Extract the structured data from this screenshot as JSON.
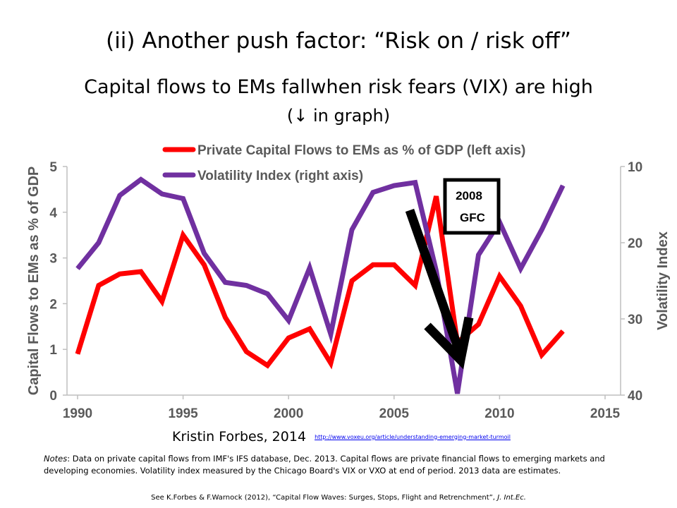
{
  "slide": {
    "title": "(ii) Another push factor: “Risk on / risk off”",
    "subtitle": "Capital flows to EMs fallwhen risk fears (VIX) are high",
    "subtitle_note": "(↓ in graph)"
  },
  "annotation": {
    "line1": "2008",
    "line2": "GFC"
  },
  "source": {
    "author": "Kristin Forbes, 2014",
    "url": "http://www.voxeu.org/article/understanding-emerging-market-turmoil"
  },
  "notes": {
    "lead": "Notes",
    "text": ": Data on private capital flows from IMF's IFS database, Dec. 2013. Capital flows are private financial flows to emerging markets and developing economies. Volatility index measured by the Chicago Board's VIX or VXO at end of period. 2013 data are estimates."
  },
  "footnote": {
    "text": "See K.Forbes & F.Warnock (2012), “Capital Flow Waves: Surges, Stops, Flight and Retrenchment”,",
    "journal": "J. Int.Ec."
  },
  "colors": {
    "capital_flows": "#ff0000",
    "vix": "#7030a0",
    "arrow": "#000000"
  },
  "chart_data": {
    "type": "line",
    "xlabel": "",
    "ylabel": "Capital Flows to EMs as % of GDP",
    "y2label": "Volatility Index",
    "xlim": [
      1990,
      2015
    ],
    "ylim": [
      0,
      5
    ],
    "y2lim": [
      10,
      40
    ],
    "y2_inverted": true,
    "grid": false,
    "legend": "top-center",
    "x_ticks": [
      "1990",
      "1995",
      "2000",
      "2005",
      "2010",
      "2015"
    ],
    "y_ticks": [
      "0",
      "1",
      "2",
      "3",
      "4",
      "5"
    ],
    "y2_ticks": [
      "10",
      "20",
      "30",
      "40"
    ],
    "x": [
      1990,
      1991,
      1992,
      1993,
      1994,
      1995,
      1996,
      1997,
      1998,
      1999,
      2000,
      2001,
      2002,
      2003,
      2004,
      2005,
      2006,
      2007,
      2008,
      2009,
      2010,
      2011,
      2012,
      2013
    ],
    "series": [
      {
        "name": "Private Capital Flows to EMs as % of GDP (left axis)",
        "axis": "left",
        "values": [
          0.9,
          2.4,
          2.65,
          2.7,
          2.05,
          3.5,
          2.85,
          1.7,
          0.95,
          0.65,
          1.25,
          1.45,
          0.7,
          2.5,
          2.85,
          2.85,
          2.4,
          4.35,
          1.15,
          1.55,
          2.6,
          1.95,
          0.88,
          1.4
        ]
      },
      {
        "name": "Volatility Index (right axis)",
        "axis": "right",
        "values": [
          23.4,
          20.0,
          13.8,
          11.7,
          13.6,
          14.2,
          21.4,
          25.2,
          25.6,
          26.7,
          30.2,
          23.3,
          32.0,
          18.3,
          13.4,
          12.5,
          12.1,
          23.7,
          39.8,
          21.6,
          17.3,
          23.4,
          18.3,
          12.5
        ]
      }
    ]
  }
}
